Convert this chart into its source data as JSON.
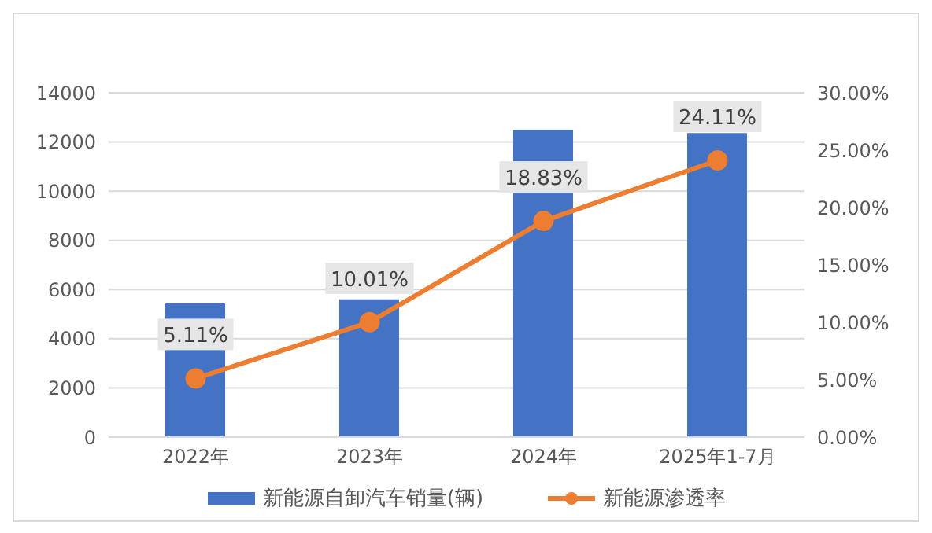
{
  "chart_data": {
    "type": "bar",
    "categories": [
      "2022年",
      "2023年",
      "2024年",
      "2025年1-7月"
    ],
    "series": [
      {
        "name": "新能源自卸汽车销量(辆)",
        "color": "#4472c4",
        "values": [
          5430,
          5600,
          12500,
          12360
        ]
      },
      {
        "name": "新能源渗透率",
        "type": "line",
        "color": "#ed7d31",
        "axis": "y2",
        "values": [
          5.11,
          10.01,
          18.83,
          24.11
        ],
        "value_labels": [
          "5.11%",
          "10.01%",
          "18.83%",
          "24.11%"
        ]
      }
    ],
    "ylim": [
      0,
      14000
    ],
    "yticks": [
      0,
      2000,
      4000,
      6000,
      8000,
      10000,
      12000,
      14000
    ],
    "y2lim": [
      0,
      30
    ],
    "y2ticks": [
      {
        "value": 0,
        "label": "0.00%"
      },
      {
        "value": 5,
        "label": "5.00%"
      },
      {
        "value": 10,
        "label": "10.00%"
      },
      {
        "value": 15,
        "label": "15.00%"
      },
      {
        "value": 20,
        "label": "20.00%"
      },
      {
        "value": 25,
        "label": "25.00%"
      },
      {
        "value": 30,
        "label": "30.00%"
      }
    ],
    "grid": "y",
    "legend": "bottom",
    "marker": "circle"
  }
}
